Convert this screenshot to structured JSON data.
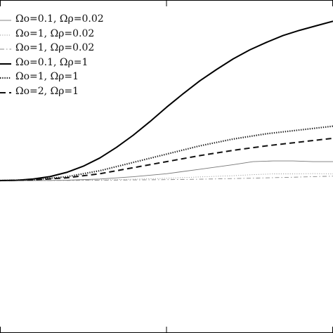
{
  "chart_data": {
    "type": "line",
    "title": "",
    "xlabel": "",
    "ylabel": "",
    "xlim": [
      0,
      100
    ],
    "ylim": [
      -100,
      110
    ],
    "grid": false,
    "legend_position": "top-left",
    "series": [
      {
        "name": "Ωo=0.1, Ωρ=0.02",
        "style": "thin-solid",
        "color": "#777777",
        "x": [
          0,
          10,
          20,
          30,
          40,
          50,
          60,
          70,
          76,
          82,
          88,
          94,
          100
        ],
        "y": [
          0,
          0,
          0.3,
          1.0,
          2.5,
          4.5,
          7.5,
          10.5,
          12.5,
          13,
          13,
          12.5,
          12.5
        ]
      },
      {
        "name": "Ωo=1, Ωρ=0.02",
        "style": "dotted-thin",
        "color": "#999999",
        "x": [
          0,
          10,
          20,
          30,
          40,
          50,
          60,
          70,
          76,
          82,
          88,
          94,
          100
        ],
        "y": [
          0,
          0,
          0.1,
          0.4,
          0.9,
          1.5,
          2.4,
          3.2,
          3.9,
          4.4,
          4.4,
          4.6,
          4.4
        ]
      },
      {
        "name": "Ωo=1, Ωρ=0.02",
        "style": "dashdot-thin",
        "color": "#888888",
        "x": [
          0,
          10,
          20,
          30,
          40,
          50,
          60,
          70,
          76,
          82,
          88,
          94,
          100
        ],
        "y": [
          0,
          0,
          0.1,
          0.2,
          0.4,
          0.6,
          0.9,
          1.3,
          1.6,
          1.9,
          2.2,
          2.6,
          2.9
        ]
      },
      {
        "name": "Ωo=0.1, Ωρ=1",
        "style": "thick-solid",
        "color": "#000000",
        "x": [
          0,
          5,
          10,
          15,
          20,
          25,
          30,
          35,
          40,
          45,
          50,
          55,
          60,
          65,
          70,
          75,
          80,
          85,
          90,
          95,
          100
        ],
        "y": [
          0,
          0.2,
          1,
          2.6,
          5.4,
          9.5,
          15,
          22,
          30,
          39,
          48.5,
          57.5,
          66,
          73.5,
          80.5,
          86.5,
          91.5,
          96,
          99.5,
          102.5,
          105.5
        ]
      },
      {
        "name": "Ωo=1, Ωρ=1",
        "style": "dotted-thick",
        "color": "#222222",
        "x": [
          0,
          10,
          20,
          30,
          40,
          50,
          60,
          70,
          80,
          90,
          100
        ],
        "y": [
          0,
          0.5,
          2.5,
          6.5,
          12,
          17.5,
          23,
          27.5,
          31,
          33.5,
          36
        ]
      },
      {
        "name": "Ωo=2, Ωρ=1",
        "style": "dashed-thick",
        "color": "#111111",
        "x": [
          0,
          10,
          20,
          30,
          40,
          50,
          60,
          70,
          80,
          90,
          100
        ],
        "y": [
          0,
          0.4,
          1.8,
          4.5,
          8.5,
          12.5,
          16.5,
          20,
          23,
          25.5,
          28
        ]
      }
    ]
  }
}
